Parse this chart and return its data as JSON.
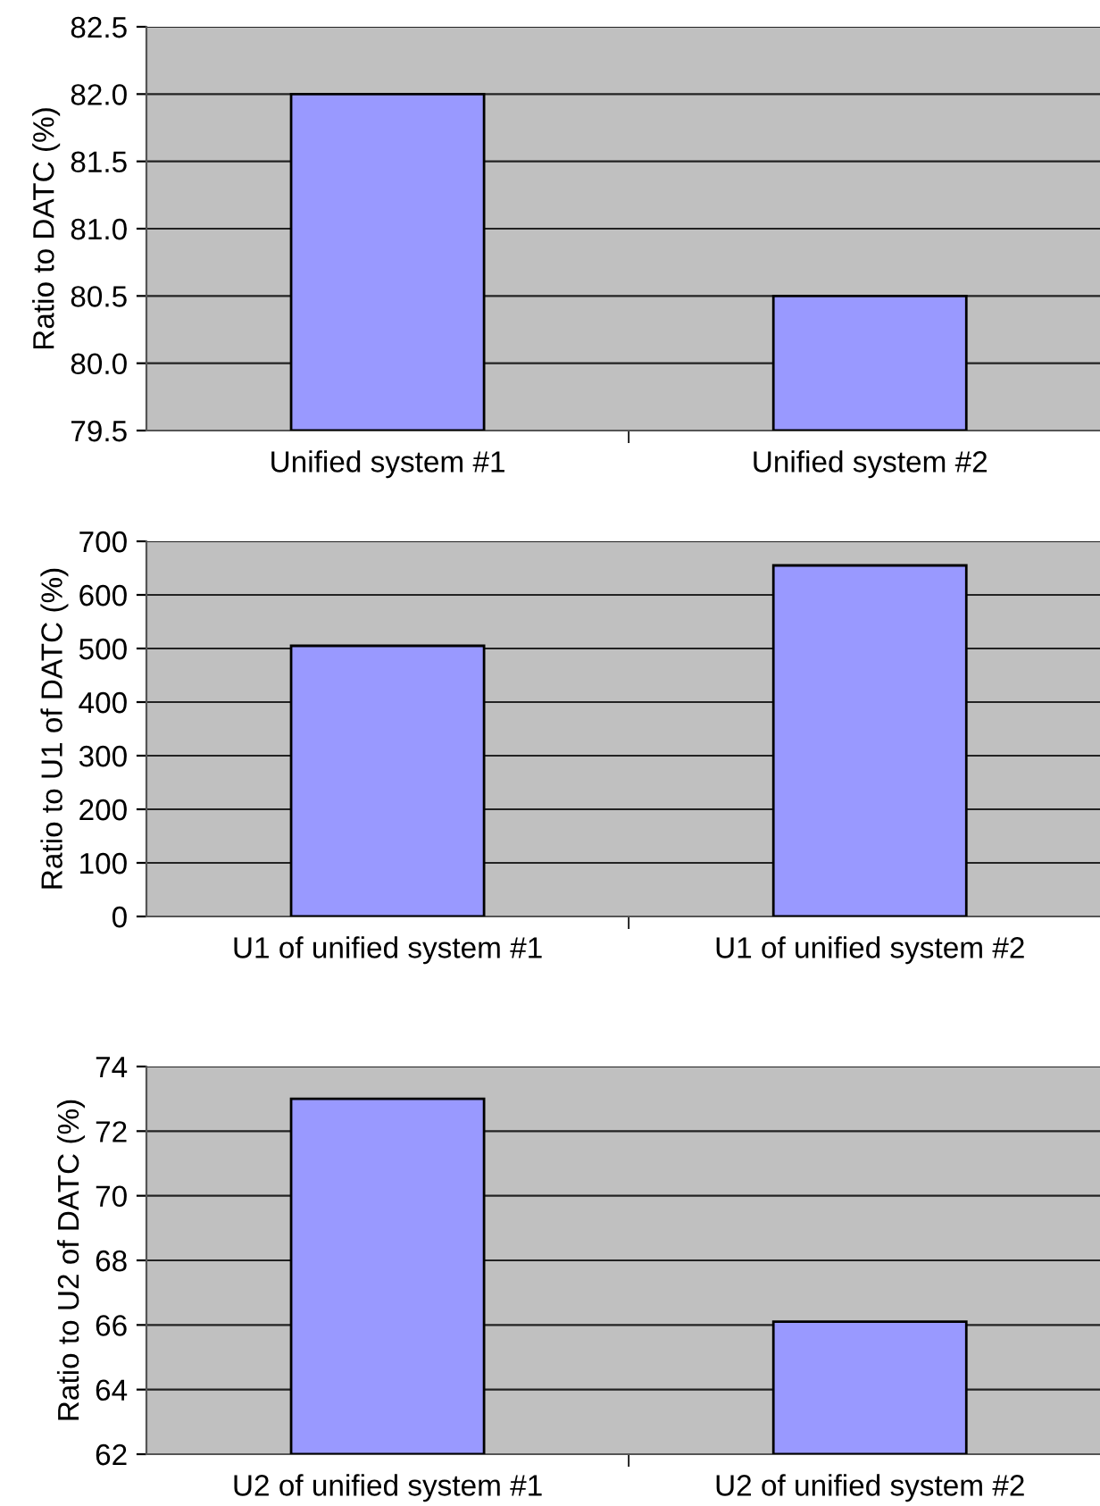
{
  "chart_data": [
    {
      "type": "bar",
      "ylabel": "Ratio to DATC (%)",
      "categories": [
        "Unified system #1",
        "Unified system #2"
      ],
      "values": [
        82.0,
        80.5
      ],
      "color": "#9999ff",
      "ylim": [
        79.5,
        82.5
      ],
      "yticks": [
        {
          "value": 79.5,
          "label": "79.5"
        },
        {
          "value": 80.0,
          "label": "80.0"
        },
        {
          "value": 80.5,
          "label": "80.5"
        },
        {
          "value": 81.0,
          "label": "81.0"
        },
        {
          "value": 81.5,
          "label": "81.5"
        },
        {
          "value": 82.0,
          "label": "82.0"
        },
        {
          "value": 82.5,
          "label": "82.5"
        }
      ],
      "grid": "y"
    },
    {
      "type": "bar",
      "ylabel": "Ratio to U1 of DATC (%)",
      "categories": [
        "U1 of unified system #1",
        "U1 of unified system #2"
      ],
      "values": [
        505,
        655
      ],
      "color": "#9999ff",
      "ylim": [
        0,
        700
      ],
      "yticks": [
        0,
        100,
        200,
        300,
        400,
        500,
        600,
        700
      ],
      "grid": "y"
    },
    {
      "type": "bar",
      "ylabel": "Ratio to U2 of DATC (%)",
      "categories": [
        "U2 of unified system #1",
        "U2 of unified system #2"
      ],
      "values": [
        73.0,
        66.1
      ],
      "color": "#9999ff",
      "ylim": [
        62,
        74
      ],
      "yticks": [
        62,
        64,
        66,
        68,
        70,
        72,
        74
      ],
      "grid": "y"
    }
  ]
}
